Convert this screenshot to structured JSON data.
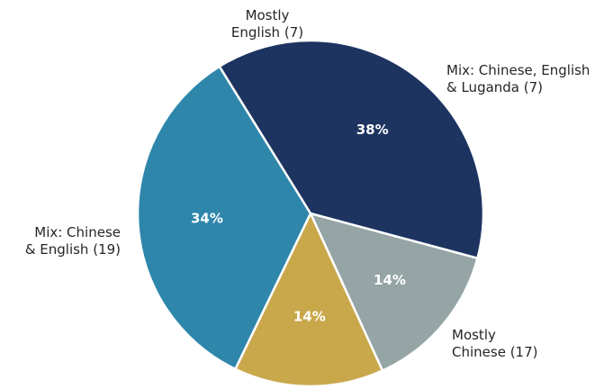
{
  "chart_data": {
    "type": "pie",
    "slices": [
      {
        "label_lines": [
          "Mostly",
          "English (7)"
        ],
        "category": "Mostly English",
        "value": 7,
        "percent_label": "14%",
        "color": "#95a5a6"
      },
      {
        "label_lines": [
          "Mix: Chinese, English",
          "& Luganda (7)"
        ],
        "category": "Mix: Chinese, English & Luganda",
        "value": 7,
        "percent_label": "14%",
        "color": "#c9a84c"
      },
      {
        "label_lines": [
          "Mostly",
          "Chinese (17)"
        ],
        "category": "Mostly Chinese",
        "value": 17,
        "percent_label": "34%",
        "color": "#2e86ab"
      },
      {
        "label_lines": [
          "Mix: Chinese",
          "& English (19)"
        ],
        "category": "Mix: Chinese & English",
        "value": 19,
        "percent_label": "38%",
        "color": "#1d3461"
      }
    ]
  }
}
